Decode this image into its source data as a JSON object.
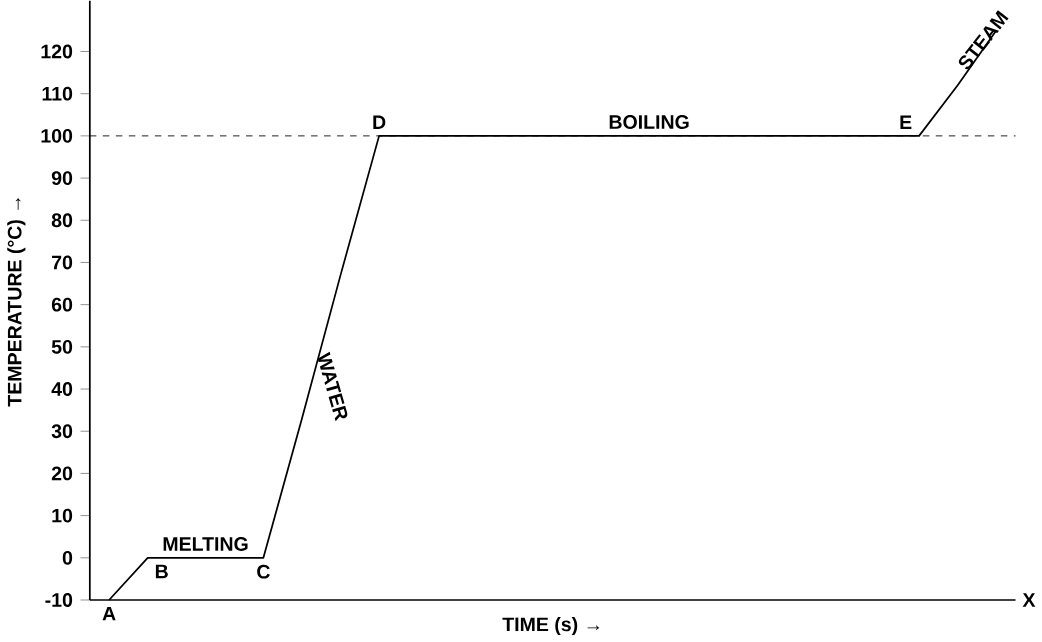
{
  "chart_data": {
    "type": "line",
    "xlabel": "TIME (s) →",
    "ylabel": "TEMPERATURE (°C) →",
    "categories": [
      null,
      null,
      null,
      null,
      null,
      null,
      null,
      null,
      null,
      null,
      null,
      null,
      null,
      null,
      null,
      null,
      null,
      null,
      null,
      null,
      null,
      null,
      null,
      null
    ],
    "values": [
      -10,
      0,
      0,
      0,
      0,
      33,
      67,
      100,
      100,
      100,
      100,
      100,
      100,
      100,
      100,
      100,
      100,
      100,
      100,
      100,
      100,
      100,
      112,
      125
    ],
    "color": "#000000",
    "ylim": [
      -10,
      132
    ],
    "yticks": [
      -10,
      0,
      10,
      20,
      30,
      40,
      50,
      60,
      70,
      80,
      90,
      100,
      110,
      120
    ],
    "tick_labels": "y",
    "grid": false,
    "marker": "none",
    "line_style": "solid",
    "ref_lines": [
      {
        "axis": "y",
        "value": 100,
        "line_style": "dashed",
        "color": "#000000"
      }
    ],
    "annotations": [
      {
        "text": "A",
        "y": -10
      },
      {
        "text": "B",
        "y": 0
      },
      {
        "text": "C",
        "y": 0
      },
      {
        "text": "D",
        "y": 100
      },
      {
        "text": "E",
        "y": 100
      },
      {
        "text": "MELTING",
        "y": 0
      },
      {
        "text": "WATER",
        "y": 50
      },
      {
        "text": "BOILING",
        "y": 100
      },
      "STEAM",
      "X"
    ]
  }
}
